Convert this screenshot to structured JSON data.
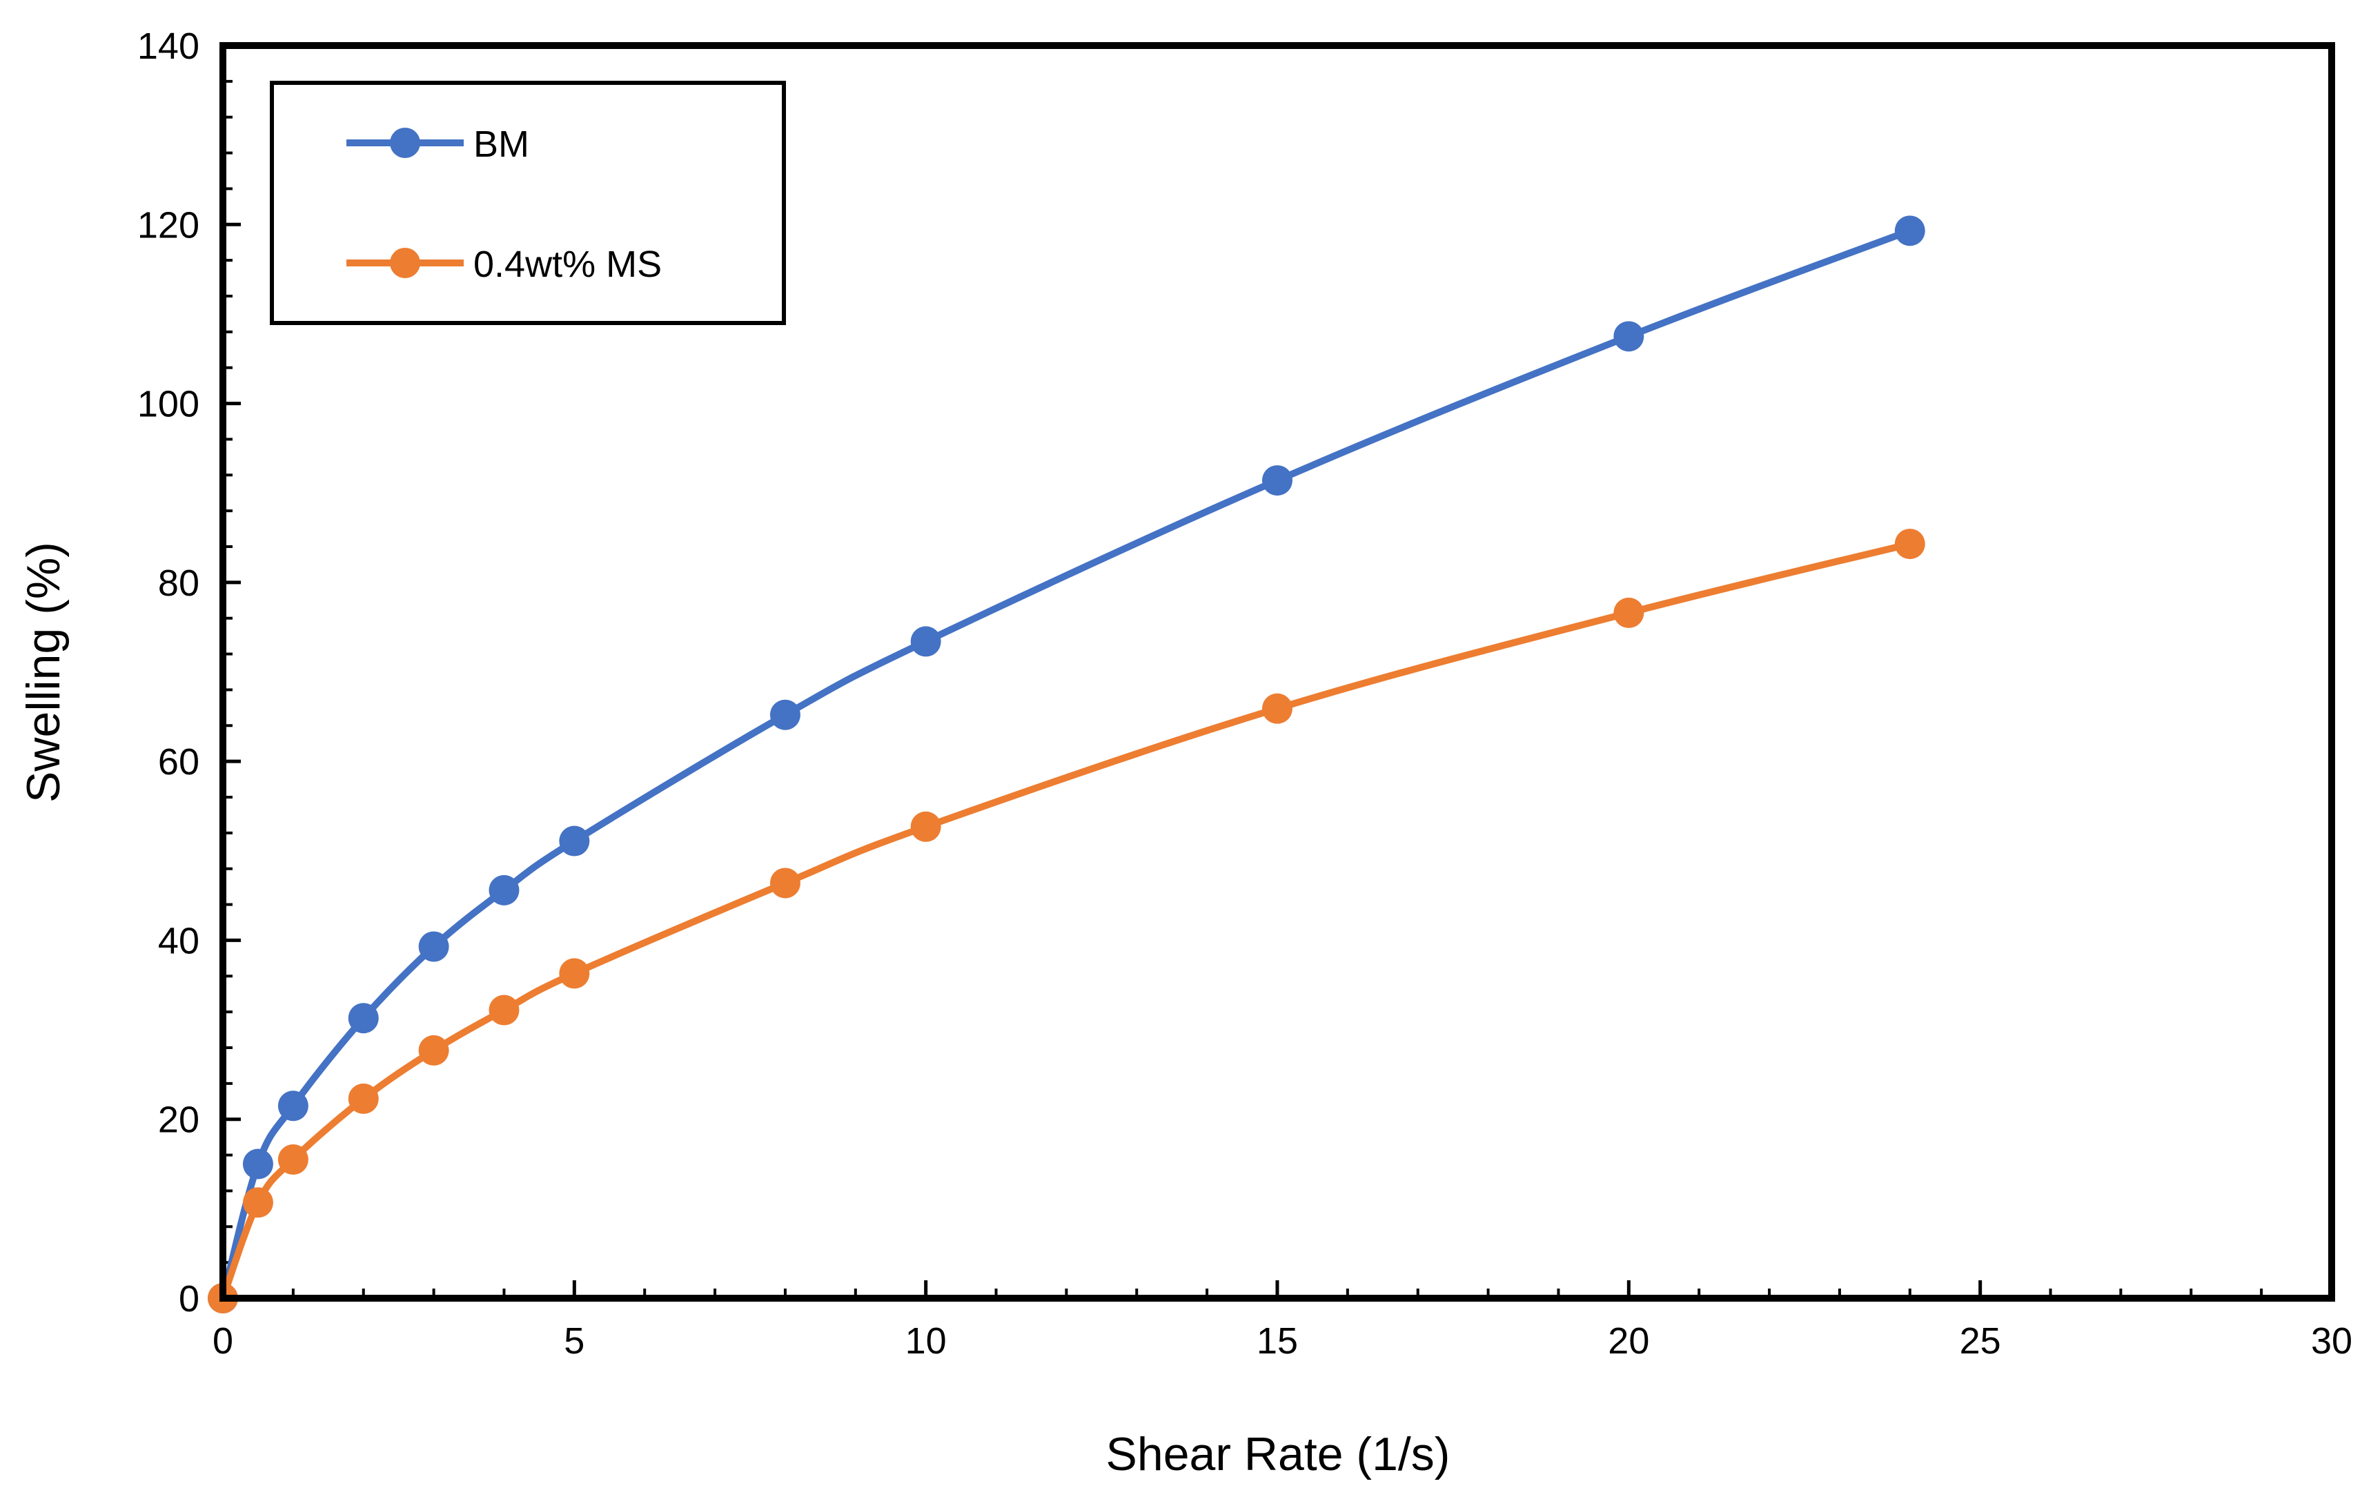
{
  "chart_data": {
    "type": "line",
    "title": "",
    "xlabel": "Shear Rate (1/s)",
    "ylabel": "Swelling (%)",
    "xlim": [
      0,
      30
    ],
    "ylim": [
      0,
      140
    ],
    "xticks": [
      0,
      5,
      10,
      15,
      20,
      25,
      30
    ],
    "yticks": [
      0,
      20,
      40,
      60,
      80,
      100,
      120,
      140
    ],
    "x_minor_step": 1,
    "y_minor_step": 4,
    "grid": false,
    "legend_position": "top-left",
    "series": [
      {
        "name": "BM",
        "color": "#4472C4",
        "x": [
          0,
          0.5,
          1,
          2,
          3,
          4,
          5,
          8,
          10,
          15,
          20,
          24
        ],
        "y": [
          0,
          15,
          21.5,
          31.3,
          39.3,
          45.6,
          51.1,
          65.2,
          73.4,
          91.4,
          107.5,
          119.3
        ]
      },
      {
        "name": "0.4wt% MS",
        "color": "#ED7D31",
        "x": [
          0,
          0.5,
          1,
          2,
          3,
          4,
          5,
          8,
          10,
          15,
          20,
          24
        ],
        "y": [
          0,
          10.7,
          15.5,
          22.3,
          27.7,
          32.2,
          36.3,
          46.4,
          52.7,
          65.9,
          76.6,
          84.3
        ]
      }
    ]
  }
}
